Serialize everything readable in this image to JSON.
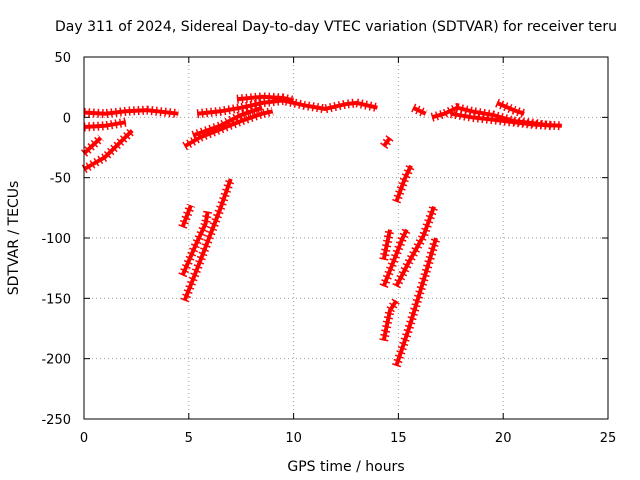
{
  "chart_data": {
    "type": "line",
    "title": "Day 311 of 2024, Sidereal Day-to-day VTEC variation (SDTVAR) for receiver teru",
    "xlabel": "GPS time / hours",
    "ylabel": "SDTVAR / TECUs",
    "xlim": [
      0,
      25
    ],
    "ylim": [
      -250,
      50
    ],
    "xticks": [
      0,
      5,
      10,
      15,
      20,
      25
    ],
    "yticks": [
      50,
      0,
      -50,
      -100,
      -150,
      -200,
      -250
    ],
    "xtick_labels": [
      "0",
      "5",
      "10",
      "15",
      "20",
      "25"
    ],
    "ytick_labels": [
      "50",
      "0",
      "-50",
      "-100",
      "-150",
      "-200",
      "-250"
    ],
    "grid": true,
    "legend": "none",
    "series_color": "#ff0000",
    "series": [
      {
        "name": "seg-1",
        "points": [
          [
            0,
            4
          ],
          [
            1,
            3
          ],
          [
            2,
            5
          ],
          [
            3,
            6
          ],
          [
            3.5,
            5
          ],
          [
            4.5,
            3
          ]
        ]
      },
      {
        "name": "seg-2",
        "points": [
          [
            0,
            -8
          ],
          [
            1,
            -7
          ],
          [
            2,
            -4
          ]
        ]
      },
      {
        "name": "seg-3",
        "points": [
          [
            0,
            -30
          ],
          [
            0.8,
            -17
          ]
        ]
      },
      {
        "name": "seg-4",
        "points": [
          [
            0,
            -43
          ],
          [
            1,
            -33
          ],
          [
            2.3,
            -11
          ]
        ]
      },
      {
        "name": "seg-5",
        "points": [
          [
            5.4,
            3
          ],
          [
            6.5,
            5
          ],
          [
            7.5,
            8
          ],
          [
            8.5,
            12
          ],
          [
            9.5,
            14
          ],
          [
            10.5,
            10
          ],
          [
            11.5,
            7
          ],
          [
            12.5,
            11
          ],
          [
            13,
            12
          ],
          [
            14,
            8
          ]
        ]
      },
      {
        "name": "seg-6",
        "points": [
          [
            4.8,
            -24
          ],
          [
            5.5,
            -17
          ],
          [
            6.5,
            -10
          ],
          [
            7.5,
            -3
          ],
          [
            8.5,
            3
          ],
          [
            9,
            5
          ]
        ]
      },
      {
        "name": "seg-7",
        "points": [
          [
            5.2,
            -15
          ],
          [
            6.5,
            -7
          ],
          [
            7.5,
            2
          ],
          [
            8.5,
            8
          ]
        ]
      },
      {
        "name": "seg-8",
        "points": [
          [
            7.3,
            15
          ],
          [
            8.5,
            17
          ],
          [
            9.5,
            16
          ],
          [
            10,
            14
          ]
        ]
      },
      {
        "name": "seg-9",
        "points": [
          [
            4.7,
            -91
          ],
          [
            5.1,
            -73
          ]
        ]
      },
      {
        "name": "seg-10",
        "points": [
          [
            4.7,
            -131
          ],
          [
            5.3,
            -107
          ],
          [
            5.8,
            -88
          ],
          [
            5.9,
            -78
          ]
        ]
      },
      {
        "name": "seg-11",
        "points": [
          [
            4.8,
            -152
          ],
          [
            5.5,
            -121
          ],
          [
            6.5,
            -76
          ],
          [
            7,
            -51
          ]
        ]
      },
      {
        "name": "seg-12",
        "points": [
          [
            14.3,
            -24
          ],
          [
            14.6,
            -17
          ]
        ]
      },
      {
        "name": "seg-13",
        "points": [
          [
            14.3,
            -118
          ],
          [
            14.6,
            -93
          ]
        ]
      },
      {
        "name": "seg-14",
        "points": [
          [
            14.3,
            -140
          ],
          [
            14.8,
            -118
          ],
          [
            15.2,
            -100
          ],
          [
            15.4,
            -93
          ]
        ]
      },
      {
        "name": "seg-15",
        "points": [
          [
            14.3,
            -185
          ],
          [
            14.6,
            -160
          ],
          [
            14.9,
            -152
          ]
        ]
      },
      {
        "name": "seg-16",
        "points": [
          [
            14.9,
            -70
          ],
          [
            15.3,
            -51
          ],
          [
            15.6,
            -40
          ]
        ]
      },
      {
        "name": "seg-17",
        "points": [
          [
            14.9,
            -140
          ],
          [
            15.5,
            -120
          ],
          [
            16.2,
            -98
          ],
          [
            16.7,
            -74
          ]
        ]
      },
      {
        "name": "seg-18",
        "points": [
          [
            14.9,
            -206
          ],
          [
            15.5,
            -175
          ],
          [
            16.2,
            -135
          ],
          [
            16.8,
            -100
          ]
        ]
      },
      {
        "name": "seg-19",
        "points": [
          [
            15.7,
            8
          ],
          [
            16.3,
            3
          ]
        ]
      },
      {
        "name": "seg-20",
        "points": [
          [
            16.6,
            0
          ],
          [
            17.2,
            3
          ],
          [
            17.8,
            8
          ],
          [
            18.5,
            5
          ],
          [
            19.5,
            2
          ],
          [
            20.5,
            -3
          ],
          [
            21.5,
            -5
          ],
          [
            22.3,
            -7
          ]
        ]
      },
      {
        "name": "seg-21",
        "points": [
          [
            17.5,
            3
          ],
          [
            18.5,
            0
          ],
          [
            19.5,
            -2
          ],
          [
            20.5,
            -4
          ],
          [
            21.5,
            -6
          ],
          [
            22.8,
            -7
          ]
        ]
      },
      {
        "name": "seg-22",
        "points": [
          [
            19.7,
            12
          ],
          [
            20.5,
            6
          ],
          [
            21,
            3
          ]
        ]
      }
    ]
  }
}
